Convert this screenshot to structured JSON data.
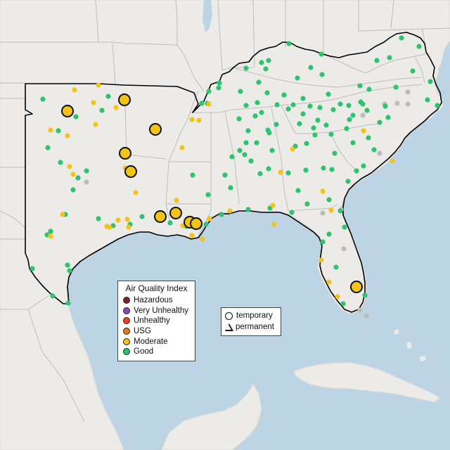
{
  "legend": {
    "title": "Air Quality Index",
    "categories": [
      {
        "label": "Hazardous",
        "color": "#7e2525"
      },
      {
        "label": "Very Unhealthy",
        "color": "#8f48b3"
      },
      {
        "label": "Unhealthy",
        "color": "#e8412b"
      },
      {
        "label": "USG",
        "color": "#e67b16"
      },
      {
        "label": "Moderate",
        "color": "#f2c318"
      },
      {
        "label": "Good",
        "color": "#2ec46e"
      }
    ]
  },
  "shape_legend": {
    "temporary": "temporary",
    "permanent": "permanent"
  },
  "colors": {
    "water": "#bcd4e4",
    "land": "#ecebe8",
    "land_edge": "#e2ded8",
    "state_border": "#bdbdbd",
    "region_outline": "#000000",
    "no_data": "#bcbcbc",
    "moderate": "#f2c318",
    "good": "#2ec46e"
  },
  "monitors": {
    "good": [
      [
        61,
        141
      ],
      [
        154,
        137
      ],
      [
        145,
        157
      ],
      [
        108,
        166
      ],
      [
        83,
        186
      ],
      [
        68,
        210
      ],
      [
        86,
        231
      ],
      [
        123,
        243
      ],
      [
        111,
        253
      ],
      [
        104,
        270
      ],
      [
        93,
        305
      ],
      [
        72,
        329
      ],
      [
        67,
        334
      ],
      [
        46,
        382
      ],
      [
        96,
        377
      ],
      [
        75,
        421
      ],
      [
        97,
        431
      ],
      [
        99,
        385
      ],
      [
        140,
        311
      ],
      [
        161,
        321
      ],
      [
        185,
        319
      ],
      [
        202,
        308
      ],
      [
        242,
        317
      ],
      [
        265,
        322
      ],
      [
        293,
        319
      ],
      [
        315,
        305
      ],
      [
        353,
        298
      ],
      [
        328,
        267
      ],
      [
        296,
        277
      ],
      [
        274,
        249
      ],
      [
        320,
        249
      ],
      [
        370,
        247
      ],
      [
        410,
        246
      ],
      [
        424,
        271
      ],
      [
        435,
        242
      ],
      [
        460,
        239
      ],
      [
        472,
        241
      ],
      [
        384,
        296
      ],
      [
        415,
        302
      ],
      [
        437,
        290
      ],
      [
        468,
        284
      ],
      [
        484,
        300
      ],
      [
        490,
        323
      ],
      [
        468,
        333
      ],
      [
        459,
        344
      ],
      [
        478,
        380
      ],
      [
        508,
        413
      ],
      [
        488,
        432
      ],
      [
        519,
        420
      ],
      [
        495,
        258
      ],
      [
        507,
        243
      ],
      [
        517,
        236
      ],
      [
        532,
        213
      ],
      [
        524,
        196
      ],
      [
        540,
        174
      ],
      [
        552,
        167
      ],
      [
        548,
        151
      ],
      [
        516,
        148
      ],
      [
        496,
        150
      ],
      [
        474,
        156
      ],
      [
        452,
        171
      ],
      [
        426,
        176
      ],
      [
        410,
        155
      ],
      [
        393,
        177
      ],
      [
        372,
        160
      ],
      [
        350,
        150
      ],
      [
        366,
        146
      ],
      [
        380,
        132
      ],
      [
        404,
        135
      ],
      [
        368,
        117
      ],
      [
        372,
        89
      ],
      [
        382,
        86
      ],
      [
        378,
        98
      ],
      [
        411,
        62
      ],
      [
        457,
        77
      ],
      [
        458,
        106
      ],
      [
        442,
        96
      ],
      [
        423,
        111
      ],
      [
        431,
        140
      ],
      [
        467,
        134
      ],
      [
        484,
        148
      ],
      [
        512,
        122
      ],
      [
        536,
        86
      ],
      [
        554,
        82
      ],
      [
        571,
        54
      ],
      [
        596,
        66
      ],
      [
        587,
        101
      ],
      [
        612,
        116
      ],
      [
        622,
        150
      ],
      [
        608,
        142
      ],
      [
        563,
        124
      ],
      [
        312,
        118
      ],
      [
        350,
        97
      ],
      [
        342,
        130
      ],
      [
        340,
        169
      ],
      [
        353,
        186
      ],
      [
        341,
        214
      ],
      [
        357,
        229
      ],
      [
        387,
        214
      ],
      [
        382,
        240
      ],
      [
        420,
        208
      ],
      [
        436,
        204
      ],
      [
        446,
        182
      ],
      [
        464,
        178
      ],
      [
        476,
        218
      ],
      [
        493,
        183
      ],
      [
        502,
        203
      ],
      [
        525,
        127
      ],
      [
        522,
        157
      ],
      [
        513,
        145
      ],
      [
        455,
        153
      ],
      [
        417,
        149
      ],
      [
        394,
        149
      ],
      [
        381,
        185
      ],
      [
        363,
        165
      ],
      [
        295,
        147
      ],
      [
        287,
        147
      ],
      [
        330,
        223
      ],
      [
        348,
        220
      ],
      [
        311,
        125
      ],
      [
        297,
        130
      ],
      [
        350,
        203
      ],
      [
        365,
        203
      ],
      [
        383,
        189
      ],
      [
        431,
        162
      ],
      [
        441,
        151
      ],
      [
        448,
        192
      ],
      [
        471,
        191
      ],
      [
        497,
        170
      ],
      [
        502,
        164
      ]
    ],
    "moderate": [
      [
        106,
        128
      ],
      [
        133,
        146
      ],
      [
        100,
        158
      ],
      [
        140,
        121
      ],
      [
        165,
        153
      ],
      [
        136,
        177
      ],
      [
        72,
        185
      ],
      [
        96,
        193
      ],
      [
        99,
        237
      ],
      [
        104,
        248
      ],
      [
        89,
        305
      ],
      [
        72,
        336
      ],
      [
        152,
        322
      ],
      [
        156,
        323
      ],
      [
        168,
        313
      ],
      [
        181,
        312
      ],
      [
        183,
        323
      ],
      [
        178,
        239
      ],
      [
        193,
        274
      ],
      [
        259,
        210
      ],
      [
        273,
        170
      ],
      [
        283,
        171
      ],
      [
        297,
        148
      ],
      [
        251,
        285
      ],
      [
        273,
        335
      ],
      [
        281,
        323
      ],
      [
        288,
        340
      ],
      [
        327,
        300
      ],
      [
        388,
        292
      ],
      [
        390,
        319
      ],
      [
        416,
        212
      ],
      [
        399,
        245
      ],
      [
        459,
        272
      ],
      [
        517,
        186
      ],
      [
        558,
        229
      ],
      [
        471,
        299
      ],
      [
        457,
        370
      ],
      [
        468,
        401
      ],
      [
        480,
        422
      ],
      [
        260,
        321
      ],
      [
        274,
        316
      ],
      [
        298,
        311
      ]
    ],
    "nodata": [
      [
        123,
        259
      ],
      [
        459,
        303
      ],
      [
        485,
        298
      ],
      [
        489,
        354
      ],
      [
        516,
        164
      ],
      [
        547,
        148
      ],
      [
        565,
        147
      ],
      [
        580,
        131
      ],
      [
        580,
        148
      ],
      [
        512,
        441
      ],
      [
        521,
        449
      ],
      [
        540,
        218
      ]
    ],
    "large_moderate": [
      [
        177,
        142
      ],
      [
        96,
        158
      ],
      [
        221,
        184
      ],
      [
        178,
        218
      ],
      [
        186,
        244
      ],
      [
        228,
        308
      ],
      [
        250,
        303
      ],
      [
        270,
        316
      ],
      [
        279,
        318
      ],
      [
        507,
        408
      ]
    ]
  }
}
